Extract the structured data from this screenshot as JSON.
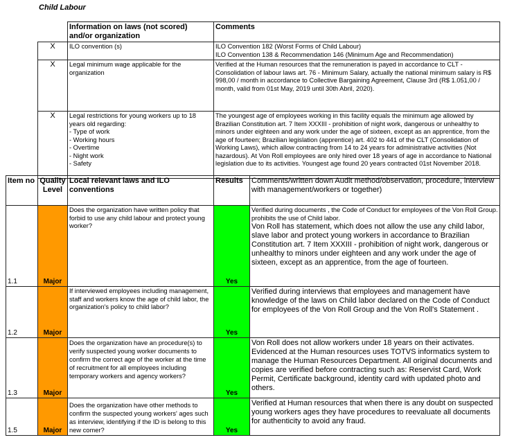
{
  "title": "Child Labour",
  "info_table": {
    "headers": {
      "info": "Information on laws (not scored) and/or organization",
      "comments": "Comments"
    },
    "rows": [
      {
        "mark": "X",
        "info": "ILO convention (s)",
        "comments": [
          "ILO Convention 182 (Worst Forms of Child Labour)",
          "ILO Convention 138 & Recommendation 146 (Minimum Age and Recommendation)"
        ]
      },
      {
        "mark": "X",
        "info": "Legal minimum wage applicable for the organization",
        "comments": [
          "Verified at the Human resources  that the remuneration is payed in accordance  to CLT - Consolidation of labour laws art. 76 - Minimum Salary,  actually the national minimum salary  is R$ 998,00 / month in accordance to Collective Bargaining Agreement, Clause 3rd (R$ 1.051,00 / month, valid from 01st May, 2019 until 30th Abril, 2020)."
        ]
      },
      {
        "mark": "X",
        "info": [
          "Legal restrictions for young workers up to 18 years old regarding:",
          "- Type of work",
          "- Working hours",
          "- Overtime",
          "- Night work",
          "- Safety"
        ],
        "comments": [
          "The youngest age of employees working in this facility equals the minimum age allowed by Brazilian Constitution art. 7 Item XXXIII - prohibition of night work, dangerous or unhealthy to minors under eighteen and any work under the age of sixteen, except as an apprentice, from the age of fourteen;  Brazilian legislation (apprentice) art.  402 to 441 of the CLT (Consolidation of Working Laws), which allow contracting from 14 to 24 years for administrative activities (Not hazardous). At Von Roll employees are only hired over 18 years of age in accordance to National  legislation due to its activities. Youngest age found 20 years contracted 01st November 2018."
        ]
      }
    ]
  },
  "audit_table": {
    "headers": {
      "item": "Item no",
      "quality": "Quality Level",
      "laws": "Local relevant laws and ILO conventions",
      "results": "Results",
      "comments": "Comments/written down Audit method/observation, procedure, interview with management/workers or together)"
    },
    "colors": {
      "quality": "#FF9900",
      "result": "#00FF00"
    },
    "rows": [
      {
        "item": "1.1",
        "quality": "Major",
        "question": "Does the organization have written policy that forbid to use any child labour and protect young worker?",
        "result": "Yes",
        "comments": [
          "Verified during documents , the Code of Conduct for employees of the Von Roll Group. prohibits the use of Child labor.",
          "Von Roll has statement, which does not allow the use any child labor, slave labor and protect young workers in accordance to Brazilian Constitution art. 7 Item XXXIII - prohibition of night work, dangerous or unhealthy to minors under eighteen and any work under the age of sixteen, except as an apprentice, from the age of fourteen."
        ]
      },
      {
        "item": "1.2",
        "quality": "Major",
        "question": "If interviewed employees including management, staff and workers know the age of child labor, the organization's policy to child labor?",
        "result": "Yes",
        "comments": [
          "Verified during interviews that employees and management have knowledge of the laws on Child labor declared on the Code of Conduct for employees of the Von Roll Group  and the Von Roll's Statement ."
        ]
      },
      {
        "item": "1.3",
        "quality": "Major",
        "question": "Does the organization have an procedure(s) to verify suspected young worker documents to confirm the correct age of the worker at the time of recruitment for all employees including temporary workers and agency workers?",
        "result": "Yes",
        "comments": [
          "Von Roll does not allow workers under 18 years on their activates. Evidenced at the Human resources uses  TOTVS informatics system to manage the Human Resources Department. All original documents and copies are verified before contracting such as: Reservist Card, Work Permit, Certificate background, identity card with updated photo and others."
        ]
      },
      {
        "item": "1.5",
        "quality": "Major",
        "question": "Does the organization have other methods to confirm the suspected young workers' ages such as interview, identifying if the ID is belong to this new comer?",
        "result": "Yes",
        "comments": [
          "Verified at Human resources that when there is any doubt on suspected young workers ages they have procedures to reevaluate all documents for authenticity to avoid any fraud."
        ]
      }
    ]
  }
}
